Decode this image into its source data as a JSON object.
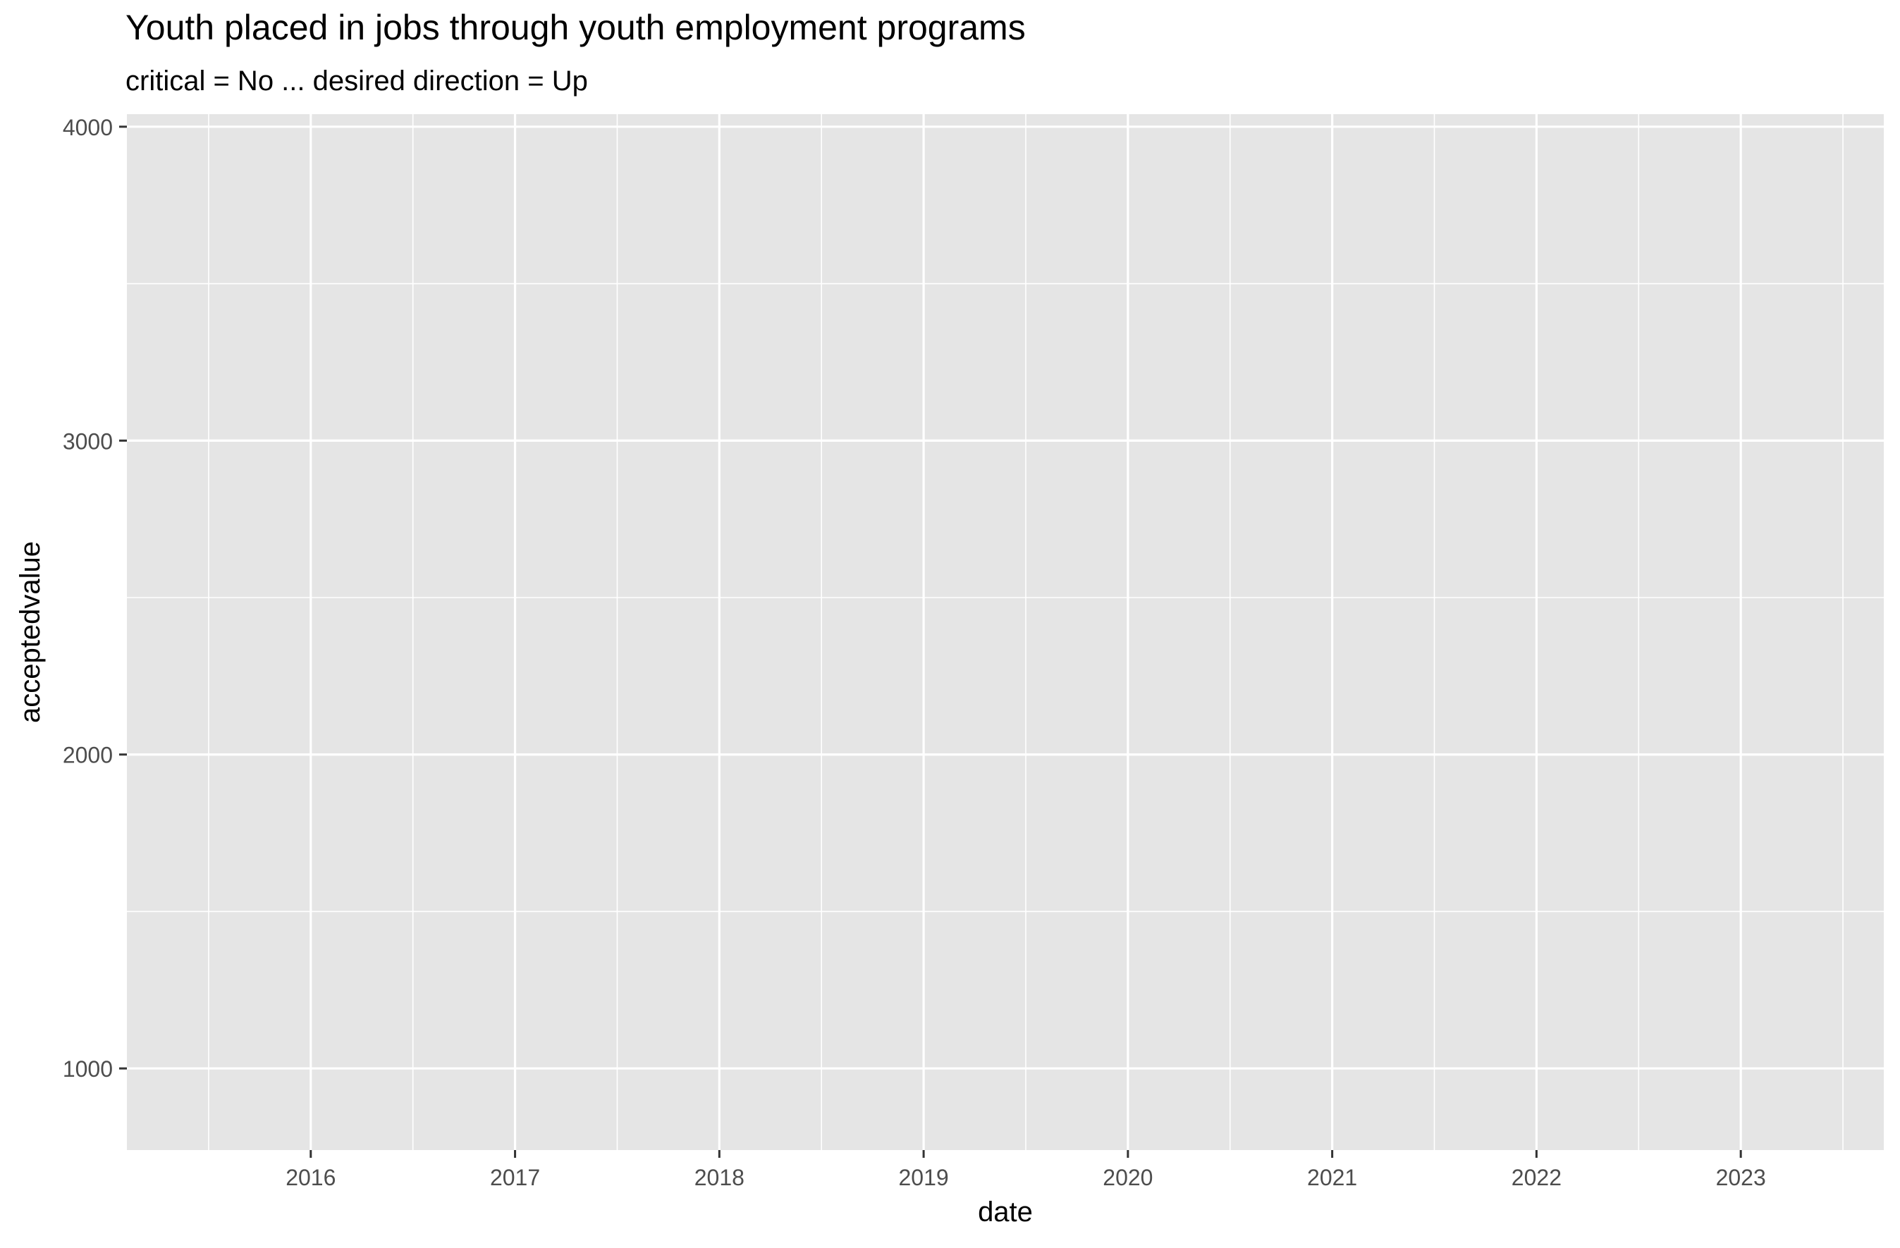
{
  "chart_data": {
    "type": "line",
    "title": "Youth placed in jobs through youth employment programs",
    "subtitle": "critical = No ... desired direction = Up",
    "xlabel": "date",
    "ylabel": "acceptedvalue",
    "x_ticks": [
      "2016",
      "2017",
      "2018",
      "2019",
      "2020",
      "2021",
      "2022",
      "2023"
    ],
    "y_ticks": [
      1000,
      2000,
      3000,
      4000
    ],
    "xlim": [
      2015.1,
      2023.7
    ],
    "ylim": [
      740,
      4040
    ],
    "grid": true,
    "series": [],
    "colors": {
      "panel_background": "#e5e5e5",
      "grid_line": "#ffffff",
      "tick_text": "#4d4d4d",
      "axis_text": "#000000"
    }
  }
}
